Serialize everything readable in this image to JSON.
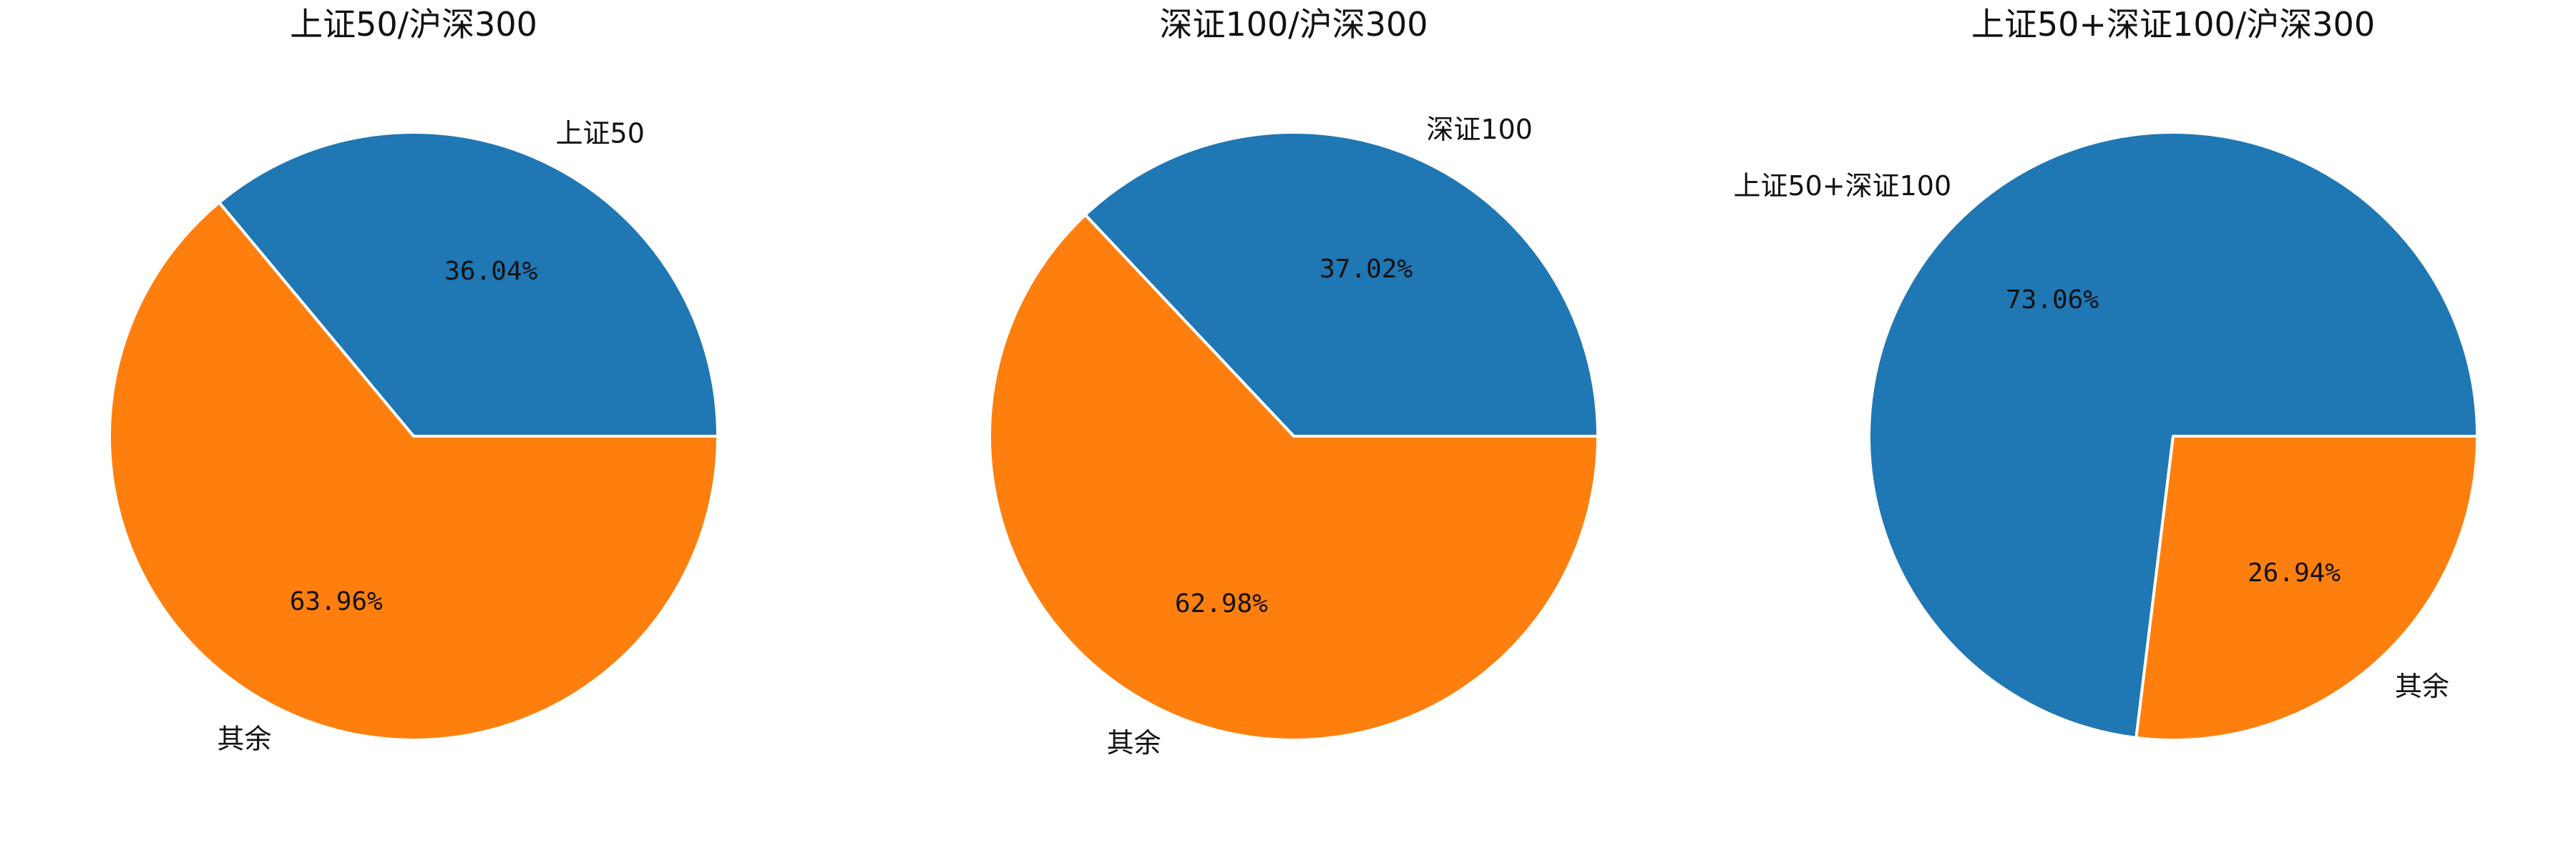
{
  "chart_data": [
    {
      "type": "pie",
      "title": "上证50/沪深300",
      "slices": [
        {
          "label": "上证50",
          "value": 36.04,
          "pct_text": "36.04%",
          "color": "#1f77b4"
        },
        {
          "label": "其余",
          "value": 63.96,
          "pct_text": "63.96%",
          "color": "#ff7f0e"
        }
      ],
      "start_angle_deg": 0,
      "direction": "counterclockwise"
    },
    {
      "type": "pie",
      "title": "深证100/沪深300",
      "slices": [
        {
          "label": "深证100",
          "value": 37.02,
          "pct_text": "37.02%",
          "color": "#1f77b4"
        },
        {
          "label": "其余",
          "value": 62.98,
          "pct_text": "62.98%",
          "color": "#ff7f0e"
        }
      ],
      "start_angle_deg": 0,
      "direction": "counterclockwise"
    },
    {
      "type": "pie",
      "title": "上证50+深证100/沪深300",
      "slices": [
        {
          "label": "上证50+深证100",
          "value": 73.06,
          "pct_text": "73.06%",
          "color": "#1f77b4"
        },
        {
          "label": "其余",
          "value": 26.94,
          "pct_text": "26.94%",
          "color": "#ff7f0e"
        }
      ],
      "start_angle_deg": 0,
      "direction": "counterclockwise"
    }
  ]
}
